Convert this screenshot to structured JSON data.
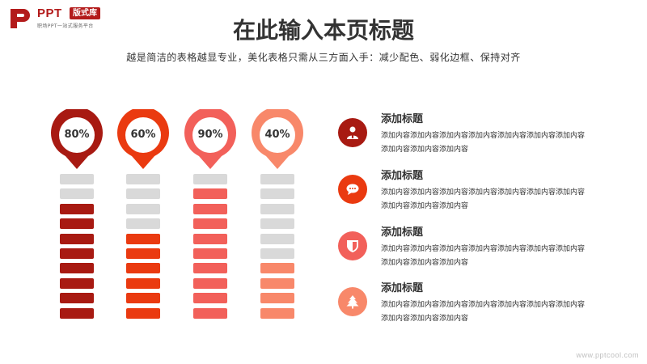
{
  "logo": {
    "name": "PPT",
    "badge": "版式库",
    "tagline": "职场PPT一站式服务平台",
    "color": "#b31b1b"
  },
  "title": "在此输入本页标题",
  "subtitle": "越是简洁的表格越显专业，美化表格只需从三方面入手：减少配色、弱化边框、保持对齐",
  "columns": [
    {
      "label": "80%",
      "value": 0.8,
      "color": "#a81a12"
    },
    {
      "label": "60%",
      "value": 0.6,
      "color": "#ea3a10"
    },
    {
      "label": "90%",
      "value": 0.9,
      "color": "#f2605a"
    },
    {
      "label": "40%",
      "value": 0.4,
      "color": "#f8886a"
    }
  ],
  "bar_count": 10,
  "empty_bar_color": "#d9d9d9",
  "items": [
    {
      "title": "添加标题",
      "body": "添加内容添加内容添加内容添加内容添加内容添加内容添加内容添加内容添加内容添加内容",
      "icon": "user-icon",
      "color": "#a81a12"
    },
    {
      "title": "添加标题",
      "body": "添加内容添加内容添加内容添加内容添加内容添加内容添加内容添加内容添加内容添加内容",
      "icon": "chat-icon",
      "color": "#ea3a10"
    },
    {
      "title": "添加标题",
      "body": "添加内容添加内容添加内容添加内容添加内容添加内容添加内容添加内容添加内容添加内容",
      "icon": "shield-icon",
      "color": "#f2605a"
    },
    {
      "title": "添加标题",
      "body": "添加内容添加内容添加内容添加内容添加内容添加内容添加内容添加内容添加内容添加内容",
      "icon": "tree-icon",
      "color": "#f8886a"
    }
  ],
  "watermark": "www.pptcool.com"
}
